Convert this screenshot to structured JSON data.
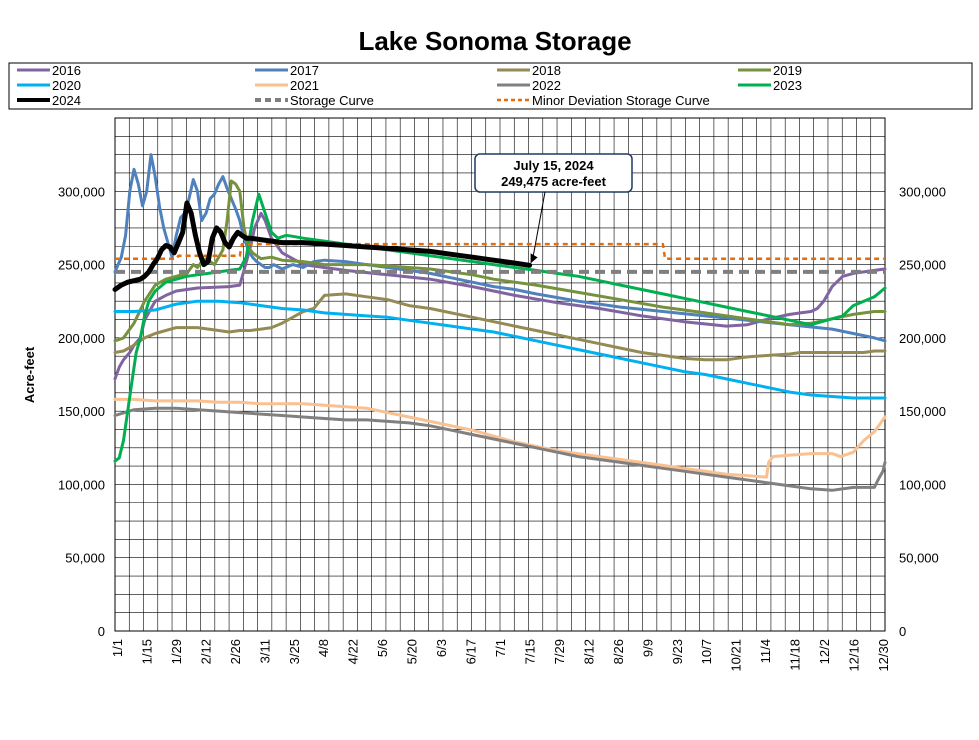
{
  "chart_data": {
    "type": "line",
    "title": "Lake Sonoma Storage",
    "ylabel": "Acre-feet",
    "xlabel": "",
    "ylim": [
      0,
      350000
    ],
    "yticks": [
      0,
      50000,
      100000,
      150000,
      200000,
      250000,
      300000
    ],
    "ytick_labels": [
      "0",
      "50,000",
      "100,000",
      "150,000",
      "200,000",
      "250,000",
      "300,000"
    ],
    "x_unit": "day of year",
    "xlim": [
      1,
      365
    ],
    "xtick_labels": [
      "1/1",
      "1/15",
      "1/29",
      "2/12",
      "2/26",
      "3/11",
      "3/25",
      "4/8",
      "4/22",
      "5/6",
      "5/20",
      "6/3",
      "6/17",
      "7/1",
      "7/15",
      "7/29",
      "8/12",
      "8/26",
      "9/9",
      "9/23",
      "10/7",
      "10/21",
      "11/4",
      "11/18",
      "12/2",
      "12/16",
      "12/30"
    ],
    "grid": true,
    "legend_position": "top",
    "annotation": {
      "line1": "July 15, 2024",
      "line2": "249,475 acre-feet",
      "x": 197,
      "y": 249475
    },
    "series": [
      {
        "name": "2016",
        "color": "#8064A2",
        "width": 3,
        "dash": "solid",
        "x": [
          1,
          3,
          5,
          8,
          10,
          13,
          15,
          18,
          20,
          25,
          30,
          40,
          55,
          60,
          62,
          65,
          67,
          70,
          72,
          75,
          80,
          90,
          110,
          130,
          150,
          170,
          190,
          210,
          230,
          250,
          270,
          290,
          300,
          310,
          320,
          325,
          330,
          333,
          336,
          340,
          345,
          350,
          355,
          360,
          365
        ],
        "y": [
          172000,
          180000,
          185000,
          190000,
          195000,
          200000,
          212000,
          220000,
          225000,
          229000,
          232000,
          234000,
          235000,
          236000,
          246000,
          262000,
          275000,
          285000,
          280000,
          268000,
          258000,
          250000,
          246000,
          243000,
          240000,
          235000,
          229000,
          224000,
          220000,
          215000,
          211000,
          208000,
          209000,
          213000,
          216000,
          217000,
          218000,
          220000,
          225000,
          235000,
          242000,
          244000,
          245000,
          246000,
          247000
        ]
      },
      {
        "name": "2017",
        "color": "#4F81BD",
        "width": 3,
        "dash": "solid",
        "x": [
          1,
          4,
          6,
          8,
          10,
          12,
          14,
          16,
          18,
          20,
          22,
          24,
          26,
          28,
          30,
          32,
          34,
          36,
          38,
          40,
          42,
          44,
          46,
          48,
          50,
          52,
          54,
          56,
          58,
          60,
          62,
          64,
          66,
          68,
          70,
          72,
          74,
          76,
          80,
          85,
          90,
          95,
          100,
          110,
          120,
          130,
          140,
          150,
          160,
          170,
          180,
          190,
          200,
          220,
          240,
          260,
          280,
          300,
          320,
          340,
          350,
          360,
          365
        ],
        "y": [
          245000,
          255000,
          270000,
          300000,
          315000,
          305000,
          290000,
          300000,
          325000,
          310000,
          290000,
          275000,
          265000,
          255000,
          270000,
          282000,
          285000,
          295000,
          308000,
          300000,
          280000,
          285000,
          295000,
          298000,
          305000,
          310000,
          302000,
          295000,
          288000,
          280000,
          268000,
          260000,
          255000,
          252000,
          250000,
          248000,
          248000,
          250000,
          247000,
          250000,
          248000,
          252000,
          253000,
          252000,
          250000,
          248000,
          246000,
          244000,
          241000,
          238000,
          235000,
          233000,
          230000,
          225000,
          221000,
          218000,
          215000,
          212000,
          209000,
          206000,
          203000,
          200000,
          198000
        ]
      },
      {
        "name": "2018",
        "color": "#948A54",
        "width": 3,
        "dash": "solid",
        "x": [
          1,
          5,
          10,
          15,
          20,
          25,
          30,
          40,
          50,
          55,
          60,
          62,
          65,
          70,
          75,
          80,
          85,
          90,
          95,
          100,
          110,
          120,
          130,
          140,
          150,
          160,
          170,
          180,
          190,
          200,
          210,
          220,
          230,
          240,
          250,
          260,
          270,
          280,
          290,
          300,
          310,
          320,
          325,
          330,
          335,
          340,
          345,
          350,
          355,
          360,
          365
        ],
        "y": [
          190000,
          191000,
          195000,
          200000,
          203000,
          205000,
          207000,
          207000,
          205000,
          204000,
          205000,
          205000,
          205000,
          206000,
          207000,
          210000,
          214000,
          218000,
          220000,
          229000,
          230000,
          228000,
          226000,
          222000,
          220000,
          217000,
          214000,
          211000,
          208000,
          205000,
          202000,
          199000,
          196000,
          193000,
          190000,
          188000,
          186000,
          185000,
          185000,
          187000,
          188000,
          189000,
          190000,
          190000,
          190000,
          190000,
          190000,
          190000,
          190000,
          191000,
          191000
        ]
      },
      {
        "name": "2019",
        "color": "#76923C",
        "width": 3,
        "dash": "solid",
        "x": [
          1,
          5,
          10,
          15,
          20,
          25,
          30,
          35,
          38,
          40,
          42,
          44,
          46,
          48,
          50,
          52,
          54,
          56,
          58,
          60,
          62,
          64,
          66,
          68,
          70,
          75,
          80,
          90,
          100,
          110,
          120,
          130,
          140,
          150,
          160,
          170,
          180,
          190,
          200,
          220,
          240,
          260,
          280,
          300,
          320,
          330,
          340,
          350,
          360,
          365
        ],
        "y": [
          198000,
          200000,
          210000,
          225000,
          236000,
          240000,
          242000,
          244000,
          250000,
          248000,
          252000,
          254000,
          252000,
          250000,
          255000,
          260000,
          280000,
          307000,
          305000,
          300000,
          275000,
          262000,
          258000,
          256000,
          254000,
          255000,
          253000,
          252000,
          250000,
          250000,
          250000,
          249000,
          248000,
          247000,
          245000,
          243000,
          240000,
          238000,
          236000,
          231000,
          226000,
          221000,
          217000,
          213000,
          209000,
          210000,
          213000,
          216000,
          218000,
          218000
        ]
      },
      {
        "name": "2020",
        "color": "#00B0F0",
        "width": 3,
        "dash": "solid",
        "x": [
          1,
          10,
          20,
          30,
          40,
          50,
          60,
          70,
          80,
          90,
          100,
          110,
          120,
          130,
          140,
          150,
          160,
          170,
          180,
          190,
          200,
          210,
          220,
          230,
          240,
          250,
          260,
          270,
          280,
          290,
          300,
          310,
          320,
          330,
          340,
          350,
          360,
          365
        ],
        "y": [
          218000,
          218000,
          219000,
          223000,
          225000,
          225000,
          224000,
          222000,
          220000,
          219000,
          217000,
          216000,
          215000,
          214000,
          212000,
          210000,
          208000,
          206000,
          204000,
          201000,
          198000,
          195000,
          192000,
          189000,
          186000,
          183000,
          180000,
          177000,
          175000,
          172000,
          169000,
          166000,
          163000,
          161000,
          160000,
          159000,
          159000,
          159000
        ]
      },
      {
        "name": "2021",
        "color": "#FAC090",
        "width": 3,
        "dash": "solid",
        "x": [
          1,
          10,
          20,
          30,
          40,
          50,
          60,
          70,
          80,
          90,
          100,
          110,
          120,
          130,
          140,
          150,
          160,
          170,
          180,
          190,
          200,
          210,
          220,
          230,
          240,
          250,
          260,
          270,
          280,
          290,
          300,
          309,
          310,
          312,
          320,
          330,
          340,
          344,
          350,
          355,
          360,
          365
        ],
        "y": [
          158000,
          158000,
          157000,
          157000,
          157000,
          156000,
          156000,
          155000,
          155000,
          155000,
          154000,
          153000,
          152000,
          149000,
          146000,
          143000,
          140000,
          137000,
          133000,
          129000,
          126000,
          123000,
          121000,
          119000,
          117000,
          115000,
          113000,
          111000,
          109000,
          107000,
          106000,
          105000,
          115000,
          119000,
          120000,
          121000,
          121000,
          119000,
          122000,
          130000,
          136000,
          146000
        ]
      },
      {
        "name": "2022",
        "color": "#808080",
        "width": 3,
        "dash": "solid",
        "x": [
          1,
          10,
          20,
          30,
          40,
          50,
          60,
          70,
          80,
          90,
          100,
          110,
          120,
          130,
          140,
          150,
          160,
          170,
          180,
          190,
          200,
          210,
          220,
          230,
          240,
          250,
          260,
          270,
          280,
          290,
          300,
          310,
          320,
          330,
          340,
          350,
          355,
          360,
          362,
          364,
          365
        ],
        "y": [
          147000,
          151000,
          152000,
          152000,
          151000,
          150000,
          149000,
          148000,
          147000,
          146000,
          145000,
          144000,
          144000,
          143000,
          142000,
          140000,
          137000,
          134000,
          131000,
          128000,
          125000,
          122000,
          119000,
          117000,
          115000,
          113000,
          111000,
          109000,
          107000,
          105000,
          103000,
          101000,
          99000,
          97000,
          96000,
          98000,
          98000,
          98000,
          104000,
          109000,
          115000
        ]
      },
      {
        "name": "2023",
        "color": "#00B050",
        "width": 3,
        "dash": "solid",
        "x": [
          1,
          3,
          5,
          7,
          9,
          11,
          13,
          15,
          17,
          20,
          25,
          30,
          35,
          40,
          45,
          50,
          55,
          60,
          63,
          66,
          69,
          72,
          75,
          78,
          82,
          86,
          90,
          100,
          110,
          120,
          130,
          140,
          150,
          160,
          170,
          180,
          190,
          200,
          210,
          220,
          230,
          240,
          250,
          260,
          270,
          280,
          290,
          300,
          310,
          320,
          330,
          340,
          345,
          350,
          355,
          360,
          365
        ],
        "y": [
          116000,
          118000,
          130000,
          150000,
          170000,
          190000,
          200000,
          215000,
          225000,
          232000,
          238000,
          240000,
          242000,
          243000,
          244000,
          245000,
          246000,
          247000,
          255000,
          280000,
          298000,
          285000,
          272000,
          268000,
          270000,
          269000,
          268000,
          266000,
          264000,
          262000,
          260000,
          258000,
          256000,
          254000,
          252000,
          250000,
          248000,
          246000,
          244000,
          242000,
          239000,
          236000,
          233000,
          230000,
          227000,
          224000,
          221000,
          218000,
          215000,
          212000,
          209000,
          213000,
          215000,
          222000,
          225000,
          228000,
          234000
        ]
      },
      {
        "name": "2024",
        "color": "#000000",
        "width": 5,
        "dash": "solid",
        "x": [
          1,
          4,
          7,
          10,
          13,
          15,
          17,
          19,
          21,
          23,
          25,
          27,
          29,
          31,
          33,
          35,
          37,
          39,
          41,
          43,
          45,
          47,
          49,
          51,
          53,
          55,
          57,
          59,
          61,
          63,
          65,
          70,
          75,
          80,
          85,
          90,
          100,
          110,
          120,
          130,
          140,
          150,
          160,
          170,
          180,
          190,
          197
        ],
        "y": [
          233000,
          236000,
          238000,
          239000,
          240000,
          242000,
          245000,
          250000,
          254000,
          260000,
          263000,
          262000,
          258000,
          265000,
          272000,
          292000,
          285000,
          270000,
          258000,
          250000,
          252000,
          268000,
          275000,
          272000,
          265000,
          262000,
          268000,
          272000,
          270000,
          268000,
          268000,
          267000,
          266000,
          265000,
          265000,
          265000,
          264000,
          263000,
          262000,
          261000,
          260000,
          259000,
          257000,
          255000,
          253000,
          251000,
          249475
        ]
      },
      {
        "name": "Storage Curve",
        "color": "#7F7F7F",
        "width": 4,
        "dash": "10,6",
        "x": [
          1,
          365
        ],
        "y": [
          245000,
          245000
        ]
      },
      {
        "name": "Minor Deviation Storage Curve",
        "color": "#E46C0A",
        "width": 2.5,
        "dash": "5,4",
        "x": [
          1,
          30,
          31,
          60,
          61,
          260,
          261,
          365
        ],
        "y": [
          254000,
          254000,
          256000,
          256000,
          264000,
          264000,
          254000,
          254000
        ]
      }
    ],
    "legend_order": [
      "2016",
      "2017",
      "2018",
      "2019",
      "2020",
      "2021",
      "2022",
      "2023",
      "2024",
      "Storage Curve",
      "Minor Deviation Storage Curve"
    ]
  }
}
